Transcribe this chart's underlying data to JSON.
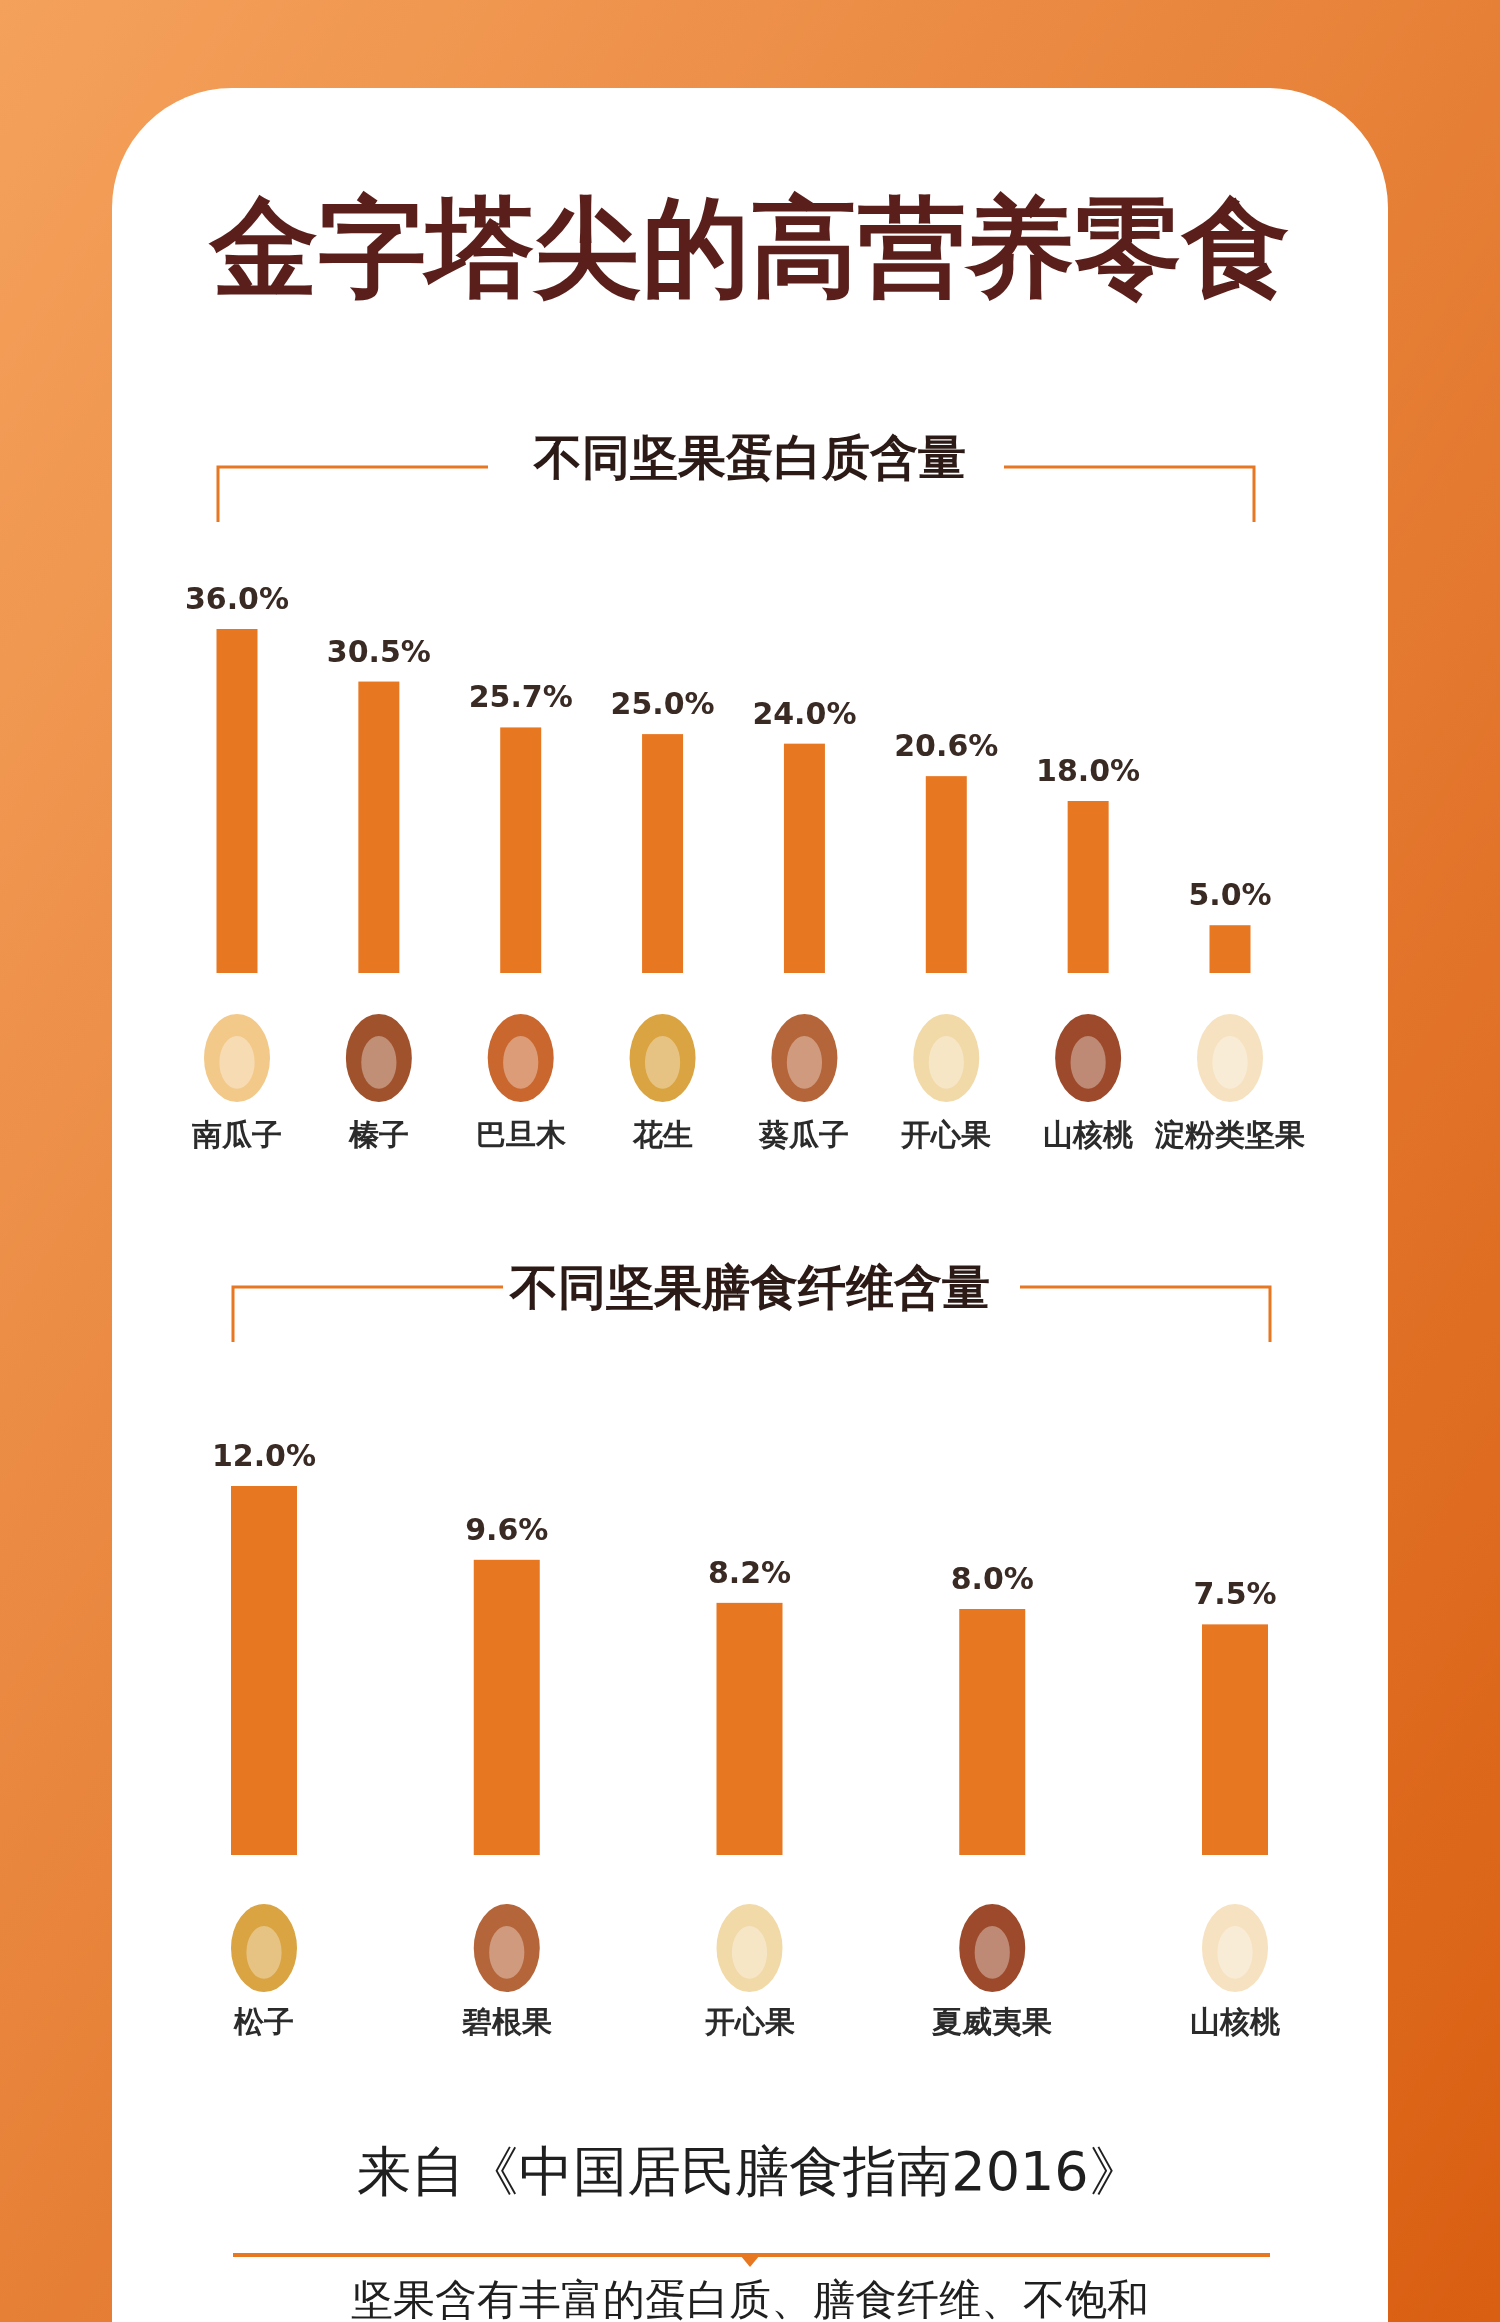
{
  "chart_data": [
    {
      "type": "bar",
      "title": "金字塔尖的高营养零食",
      "subtitle": "不同坚果蛋白质含量",
      "categories": [
        "南瓜子",
        "榛子",
        "巴旦木",
        "花生",
        "葵瓜子",
        "开心果",
        "山核桃",
        "淀粉类坚果"
      ],
      "values": [
        36.0,
        30.5,
        25.7,
        25.0,
        24.0,
        20.6,
        18.0,
        5.0
      ],
      "value_labels": [
        "36.0%",
        "30.5%",
        "25.7%",
        "25.0%",
        "24.0%",
        "20.6%",
        "18.0%",
        "5.0%"
      ],
      "color": "#e87722"
    },
    {
      "type": "bar",
      "subtitle": "不同坚果膳食纤维含量",
      "categories": [
        "松子",
        "碧根果",
        "开心果",
        "夏威夷果",
        "山核桃"
      ],
      "values": [
        12.0,
        9.6,
        8.2,
        8.0,
        7.5
      ],
      "value_labels": [
        "12.0%",
        "9.6%",
        "8.2%",
        "8.0%",
        "7.5%"
      ],
      "color": "#e87722",
      "annotations": [
        "来自《中国居民膳食指南2016》",
        "坚果含有丰富的蛋白质、膳食纤维、不饱和"
      ]
    }
  ]
}
